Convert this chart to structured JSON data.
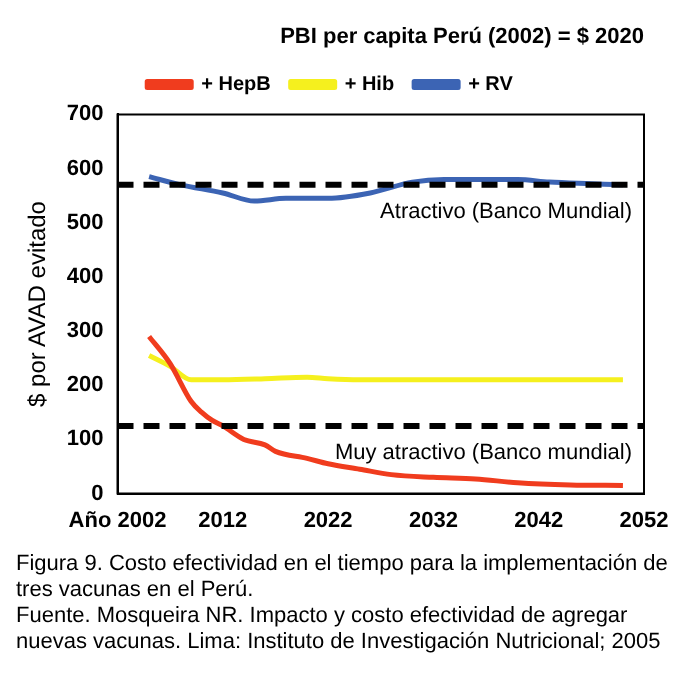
{
  "chart_data": {
    "type": "line",
    "title": "PBI per capita Perú (2002) = $ 2020",
    "ylabel": "$ por AVAD evitado",
    "xlim": [
      2002,
      2052
    ],
    "xticks": [
      {
        "value": 2002,
        "label": "Año 2002"
      },
      2012,
      2022,
      2032,
      2042,
      2052
    ],
    "ylim": [
      0,
      700
    ],
    "yticks": [
      0,
      100,
      200,
      300,
      400,
      500,
      600,
      700
    ],
    "grid": false,
    "legend": "top",
    "marker": "none",
    "line_style": "solid",
    "series": [
      {
        "name": "+ HepB",
        "color": "#f03c1e",
        "x": [
          2005,
          2007,
          2009,
          2010,
          2011,
          2012,
          2014,
          2016,
          2017,
          2020,
          2022,
          2025,
          2028,
          2032,
          2036,
          2040,
          2045,
          2050
        ],
        "values": [
          290,
          240,
          170,
          150,
          135,
          125,
          100,
          90,
          78,
          65,
          55,
          45,
          35,
          30,
          27,
          20,
          16,
          15
        ]
      },
      {
        "name": "+ Hib",
        "color": "#f5f01e",
        "x": [
          2005,
          2007,
          2009,
          2012,
          2016,
          2020,
          2022,
          2025,
          2050
        ],
        "values": [
          255,
          235,
          210,
          210,
          212,
          215,
          212,
          210,
          210
        ]
      },
      {
        "name": "+ RV",
        "color": "#3c64b4",
        "x": [
          2005,
          2008,
          2012,
          2015,
          2018,
          2022,
          2026,
          2030,
          2033,
          2040,
          2043,
          2047,
          2050
        ],
        "values": [
          585,
          570,
          555,
          540,
          545,
          545,
          555,
          575,
          580,
          580,
          575,
          572,
          570
        ]
      }
    ],
    "ref_lines": [
      {
        "axis": "y",
        "value": 570,
        "label": "Atractivo (Banco Mundial)",
        "color": "#000000",
        "line_style": "dashed"
      },
      {
        "axis": "y",
        "value": 125,
        "label": "Muy atractivo (Banco mundial)",
        "color": "#000000",
        "line_style": "dashed"
      }
    ],
    "annotations": [
      "Figura 9. Costo efectividad en el tiempo para la implementación de tres vacunas en el Perú.",
      "Fuente. Mosqueira NR. Impacto y costo efectividad de agregar nuevas vacunas. Lima: Instituto de Investigación Nutricional; 2005"
    ]
  }
}
